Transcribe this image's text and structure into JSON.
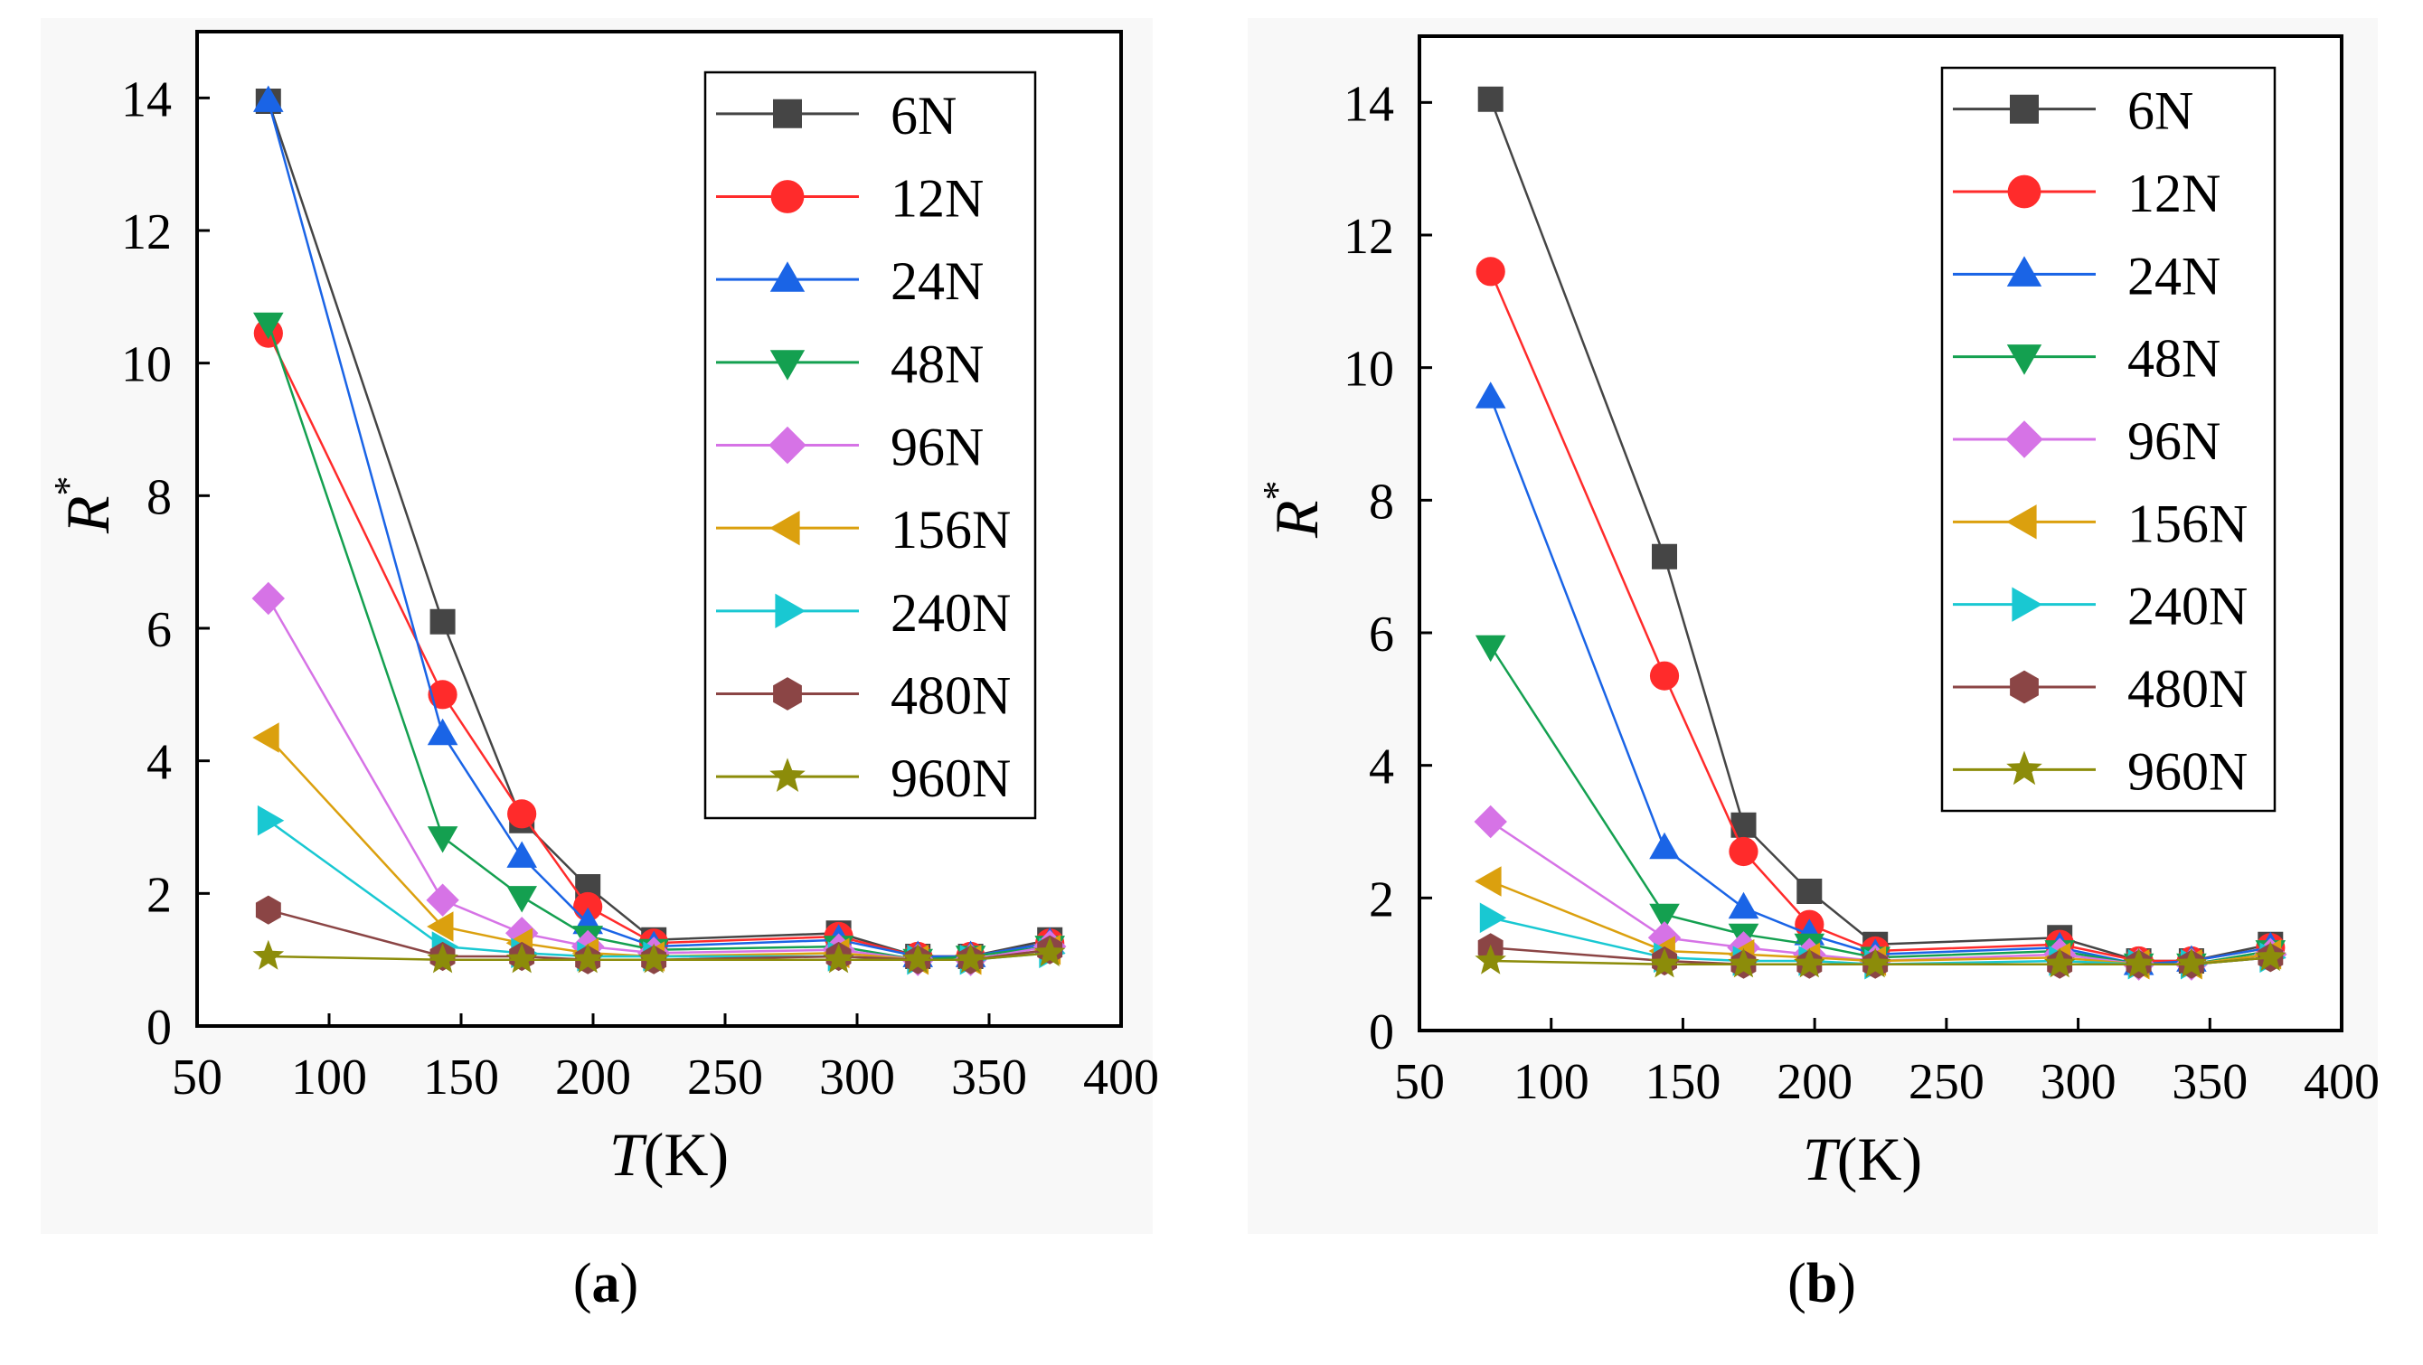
{
  "chart_data": [
    {
      "type": "line",
      "panel_label": "a",
      "xlabel": "T",
      "xlabel_unit": "(K)",
      "ylabel": "R",
      "ylabel_superscript": "*",
      "xlim": [
        50,
        400
      ],
      "ylim": [
        0,
        15
      ],
      "xticks": [
        50,
        100,
        150,
        200,
        250,
        300,
        350,
        400
      ],
      "yticks": [
        0,
        2,
        4,
        6,
        8,
        10,
        12,
        14
      ],
      "legend_position": "top-right",
      "grid": false,
      "x": [
        77,
        143,
        173,
        198,
        223,
        293,
        323,
        343,
        373
      ],
      "series": [
        {
          "name": "6N",
          "marker": "square",
          "color": "#454545",
          "values": [
            13.95,
            6.1,
            3.1,
            2.1,
            1.3,
            1.4,
            1.05,
            1.05,
            1.3
          ]
        },
        {
          "name": "12N",
          "marker": "circle",
          "color": "#ff2b2b",
          "values": [
            10.45,
            5.0,
            3.2,
            1.8,
            1.25,
            1.35,
            1.05,
            1.05,
            1.25
          ]
        },
        {
          "name": "24N",
          "marker": "triangle-up",
          "color": "#1a64e6",
          "values": [
            13.95,
            4.4,
            2.55,
            1.55,
            1.2,
            1.3,
            1.05,
            1.05,
            1.25
          ]
        },
        {
          "name": "48N",
          "marker": "triangle-down",
          "color": "#14a050",
          "values": [
            10.6,
            2.85,
            1.95,
            1.35,
            1.15,
            1.2,
            1.0,
            1.05,
            1.2
          ]
        },
        {
          "name": "96N",
          "marker": "diamond",
          "color": "#d673e6",
          "values": [
            6.45,
            1.9,
            1.4,
            1.2,
            1.1,
            1.15,
            1.0,
            1.0,
            1.2
          ]
        },
        {
          "name": "156N",
          "marker": "triangle-left",
          "color": "#dba00e",
          "values": [
            4.35,
            1.5,
            1.25,
            1.1,
            1.05,
            1.1,
            1.0,
            1.0,
            1.15
          ]
        },
        {
          "name": "240N",
          "marker": "triangle-right",
          "color": "#19c8d2",
          "values": [
            3.1,
            1.2,
            1.1,
            1.05,
            1.05,
            1.05,
            1.0,
            1.0,
            1.1
          ]
        },
        {
          "name": "480N",
          "marker": "hexagon",
          "color": "#8b4545",
          "values": [
            1.75,
            1.05,
            1.05,
            1.0,
            1.0,
            1.05,
            1.0,
            1.0,
            1.15
          ]
        },
        {
          "name": "960N",
          "marker": "star",
          "color": "#8c8c0a",
          "values": [
            1.05,
            1.0,
            1.0,
            1.0,
            1.0,
            1.0,
            1.0,
            1.0,
            1.1
          ]
        }
      ]
    },
    {
      "type": "line",
      "panel_label": "b",
      "xlabel": "T",
      "xlabel_unit": "(K)",
      "ylabel": "R",
      "ylabel_superscript": "*",
      "xlim": [
        50,
        400
      ],
      "ylim": [
        0,
        15
      ],
      "xticks": [
        50,
        100,
        150,
        200,
        250,
        300,
        350,
        400
      ],
      "yticks": [
        0,
        2,
        4,
        6,
        8,
        10,
        12,
        14
      ],
      "legend_position": "top-right",
      "grid": false,
      "x": [
        77,
        143,
        173,
        198,
        223,
        293,
        323,
        343,
        373
      ],
      "series": [
        {
          "name": "6N",
          "marker": "square",
          "color": "#454545",
          "values": [
            14.05,
            7.15,
            3.1,
            2.1,
            1.3,
            1.4,
            1.05,
            1.05,
            1.3
          ]
        },
        {
          "name": "12N",
          "marker": "circle",
          "color": "#ff2b2b",
          "values": [
            11.45,
            5.35,
            2.7,
            1.6,
            1.2,
            1.3,
            1.05,
            1.05,
            1.25
          ]
        },
        {
          "name": "24N",
          "marker": "triangle-up",
          "color": "#1a64e6",
          "values": [
            9.55,
            2.75,
            1.85,
            1.45,
            1.15,
            1.25,
            1.0,
            1.05,
            1.25
          ]
        },
        {
          "name": "48N",
          "marker": "triangle-down",
          "color": "#14a050",
          "values": [
            5.8,
            1.75,
            1.45,
            1.3,
            1.1,
            1.2,
            1.0,
            1.0,
            1.2
          ]
        },
        {
          "name": "96N",
          "marker": "diamond",
          "color": "#d673e6",
          "values": [
            3.15,
            1.4,
            1.25,
            1.15,
            1.05,
            1.15,
            1.0,
            1.0,
            1.15
          ]
        },
        {
          "name": "156N",
          "marker": "triangle-left",
          "color": "#dba00e",
          "values": [
            2.25,
            1.2,
            1.15,
            1.1,
            1.05,
            1.1,
            1.0,
            1.0,
            1.15
          ]
        },
        {
          "name": "240N",
          "marker": "triangle-right",
          "color": "#19c8d2",
          "values": [
            1.7,
            1.1,
            1.05,
            1.05,
            1.0,
            1.05,
            1.0,
            1.0,
            1.1
          ]
        },
        {
          "name": "480N",
          "marker": "hexagon",
          "color": "#8b4545",
          "values": [
            1.25,
            1.05,
            1.0,
            1.0,
            1.0,
            1.0,
            1.0,
            1.0,
            1.1
          ]
        },
        {
          "name": "960N",
          "marker": "star",
          "color": "#8c8c0a",
          "values": [
            1.05,
            1.0,
            1.0,
            1.0,
            1.0,
            1.0,
            1.0,
            1.0,
            1.1
          ]
        }
      ]
    }
  ]
}
